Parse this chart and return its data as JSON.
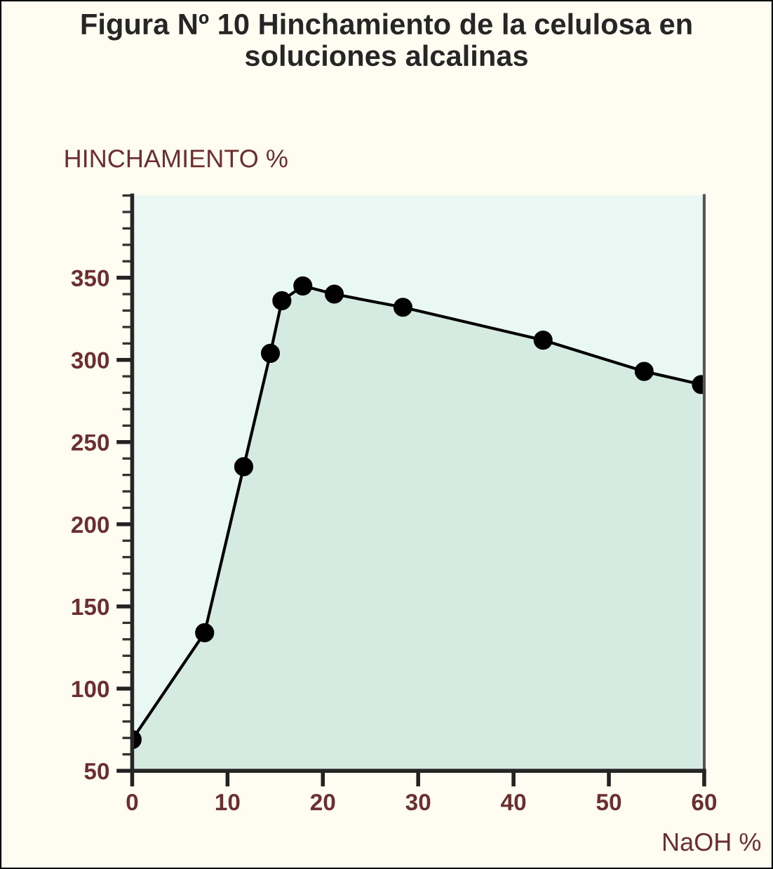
{
  "chart_data": {
    "type": "area",
    "title": "Figura Nº 10 Hinchamiento de la celulosa en soluciones alcalinas",
    "ylabel": "HINCHAMIENTO %",
    "xlabel": "NaOH %",
    "x": [
      0,
      7.6,
      11.7,
      14.5,
      15.7,
      17.9,
      21.2,
      28.4,
      43.1,
      53.7,
      59.7
    ],
    "series": [
      {
        "color": "#000000",
        "values": [
          69,
          134,
          235,
          304,
          336,
          345,
          340,
          332,
          312,
          293,
          285
        ]
      }
    ],
    "xlim": [
      0,
      60
    ],
    "ylim": [
      50,
      400
    ],
    "xticks": [
      0,
      10,
      20,
      30,
      40,
      50,
      60
    ],
    "yticks": [
      50,
      100,
      150,
      200,
      250,
      300,
      350
    ],
    "marker": "circle",
    "line_style": "solid",
    "grid": false,
    "legend": false
  }
}
